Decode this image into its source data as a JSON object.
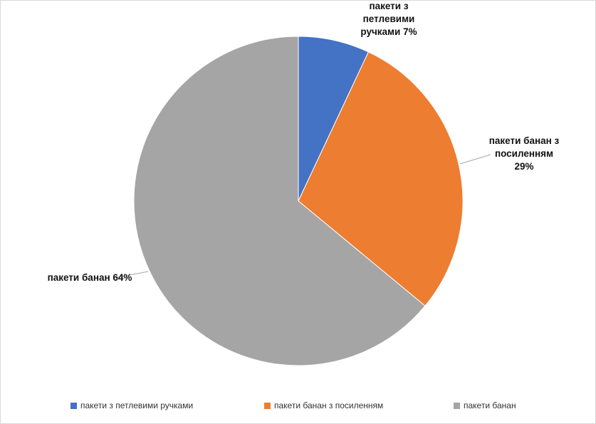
{
  "chart_data": {
    "type": "pie",
    "categories": [
      "пакети з петлевими ручками",
      "пакети банан з посиленням",
      "пакети банан"
    ],
    "values": [
      7,
      29,
      64
    ],
    "value_labels": [
      "7%",
      "29%",
      "64%"
    ],
    "colors": [
      "#4472c4",
      "#ed7d31",
      "#a5a5a5"
    ],
    "legend": "bottom"
  }
}
